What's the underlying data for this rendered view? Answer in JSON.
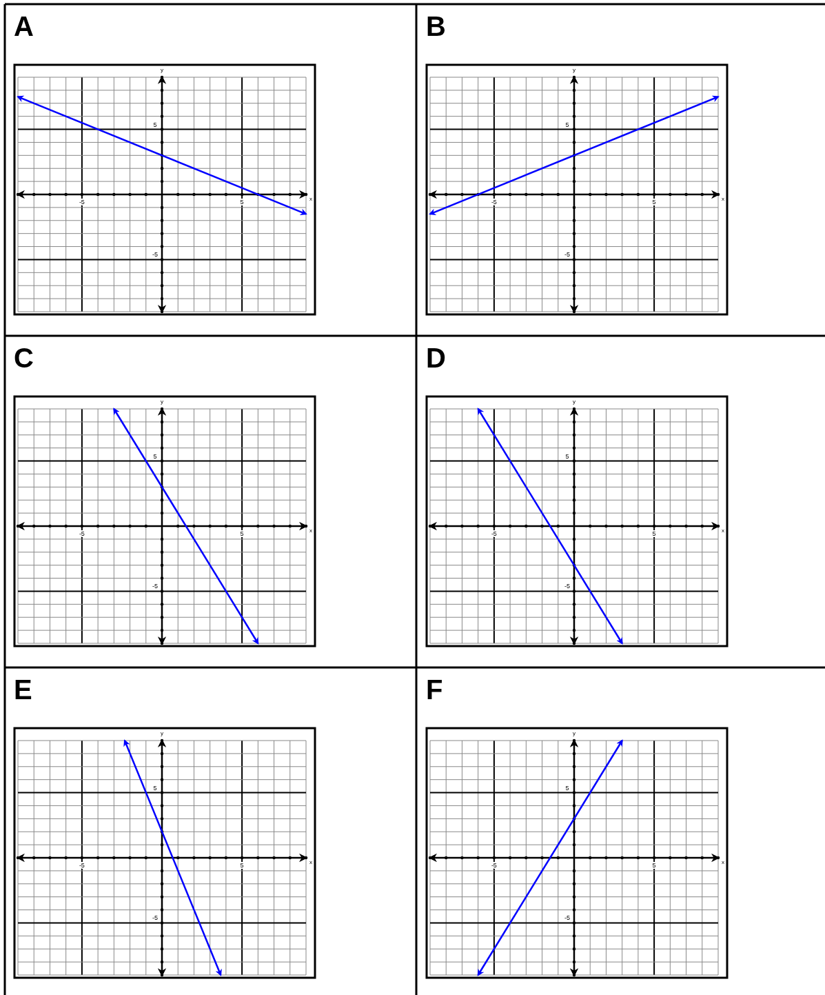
{
  "chart_data": [
    {
      "type": "line",
      "title": "A",
      "xlabel": "x",
      "ylabel": "y",
      "xlim": [
        -9,
        9
      ],
      "ylim": [
        -9,
        9
      ],
      "grid": true,
      "xticks": [
        {
          "value": -9,
          "label": null
        },
        {
          "value": -8,
          "label": null
        },
        {
          "value": -7,
          "label": null
        },
        {
          "value": -6,
          "label": null
        },
        {
          "value": -5,
          "label": "-5"
        },
        {
          "value": -4,
          "label": null
        },
        {
          "value": -3,
          "label": null
        },
        {
          "value": -2,
          "label": null
        },
        {
          "value": -1,
          "label": null
        },
        {
          "value": 1,
          "label": null
        },
        {
          "value": 2,
          "label": null
        },
        {
          "value": 3,
          "label": null
        },
        {
          "value": 4,
          "label": null
        },
        {
          "value": 5,
          "label": "5"
        },
        {
          "value": 6,
          "label": null
        },
        {
          "value": 7,
          "label": null
        },
        {
          "value": 8,
          "label": null
        },
        {
          "value": 9,
          "label": null
        }
      ],
      "yticks": [
        {
          "value": -9,
          "label": null
        },
        {
          "value": -8,
          "label": null
        },
        {
          "value": -7,
          "label": null
        },
        {
          "value": -6,
          "label": null
        },
        {
          "value": -5,
          "label": "-5"
        },
        {
          "value": -4,
          "label": null
        },
        {
          "value": -3,
          "label": null
        },
        {
          "value": -2,
          "label": null
        },
        {
          "value": -1,
          "label": null
        },
        {
          "value": 1,
          "label": null
        },
        {
          "value": 2,
          "label": null
        },
        {
          "value": 3,
          "label": null
        },
        {
          "value": 4,
          "label": null
        },
        {
          "value": 5,
          "label": "5"
        },
        {
          "value": 6,
          "label": null
        },
        {
          "value": 7,
          "label": null
        },
        {
          "value": 8,
          "label": null
        },
        {
          "value": 9,
          "label": null
        }
      ],
      "series": [
        {
          "color": "#0000ff",
          "x": [
            -9,
            9
          ],
          "values": [
            7.5,
            -1.5
          ]
        }
      ]
    },
    {
      "type": "line",
      "title": "B",
      "xlabel": "x",
      "ylabel": "y",
      "xlim": [
        -9,
        9
      ],
      "ylim": [
        -9,
        9
      ],
      "grid": true,
      "xticks": [
        {
          "value": -9,
          "label": null
        },
        {
          "value": -8,
          "label": null
        },
        {
          "value": -7,
          "label": null
        },
        {
          "value": -6,
          "label": null
        },
        {
          "value": -5,
          "label": "-5"
        },
        {
          "value": -4,
          "label": null
        },
        {
          "value": -3,
          "label": null
        },
        {
          "value": -2,
          "label": null
        },
        {
          "value": -1,
          "label": null
        },
        {
          "value": 1,
          "label": null
        },
        {
          "value": 2,
          "label": null
        },
        {
          "value": 3,
          "label": null
        },
        {
          "value": 4,
          "label": null
        },
        {
          "value": 5,
          "label": "5"
        },
        {
          "value": 6,
          "label": null
        },
        {
          "value": 7,
          "label": null
        },
        {
          "value": 8,
          "label": null
        },
        {
          "value": 9,
          "label": null
        }
      ],
      "yticks": [
        {
          "value": -9,
          "label": null
        },
        {
          "value": -8,
          "label": null
        },
        {
          "value": -7,
          "label": null
        },
        {
          "value": -6,
          "label": null
        },
        {
          "value": -5,
          "label": "-5"
        },
        {
          "value": -4,
          "label": null
        },
        {
          "value": -3,
          "label": null
        },
        {
          "value": -2,
          "label": null
        },
        {
          "value": -1,
          "label": null
        },
        {
          "value": 1,
          "label": null
        },
        {
          "value": 2,
          "label": null
        },
        {
          "value": 3,
          "label": null
        },
        {
          "value": 4,
          "label": null
        },
        {
          "value": 5,
          "label": "5"
        },
        {
          "value": 6,
          "label": null
        },
        {
          "value": 7,
          "label": null
        },
        {
          "value": 8,
          "label": null
        },
        {
          "value": 9,
          "label": null
        }
      ],
      "series": [
        {
          "color": "#0000ff",
          "x": [
            -9,
            9
          ],
          "values": [
            -1.5,
            7.5
          ]
        }
      ]
    },
    {
      "type": "line",
      "title": "C",
      "xlabel": "x",
      "ylabel": "y",
      "xlim": [
        -9,
        9
      ],
      "ylim": [
        -9,
        9
      ],
      "grid": true,
      "xticks": [
        {
          "value": -9,
          "label": null
        },
        {
          "value": -8,
          "label": null
        },
        {
          "value": -7,
          "label": null
        },
        {
          "value": -6,
          "label": null
        },
        {
          "value": -5,
          "label": "-5"
        },
        {
          "value": -4,
          "label": null
        },
        {
          "value": -3,
          "label": null
        },
        {
          "value": -2,
          "label": null
        },
        {
          "value": -1,
          "label": null
        },
        {
          "value": 1,
          "label": null
        },
        {
          "value": 2,
          "label": null
        },
        {
          "value": 3,
          "label": null
        },
        {
          "value": 4,
          "label": null
        },
        {
          "value": 5,
          "label": "5"
        },
        {
          "value": 6,
          "label": null
        },
        {
          "value": 7,
          "label": null
        },
        {
          "value": 8,
          "label": null
        },
        {
          "value": 9,
          "label": null
        }
      ],
      "yticks": [
        {
          "value": -9,
          "label": null
        },
        {
          "value": -8,
          "label": null
        },
        {
          "value": -7,
          "label": null
        },
        {
          "value": -6,
          "label": null
        },
        {
          "value": -5,
          "label": "-5"
        },
        {
          "value": -4,
          "label": null
        },
        {
          "value": -3,
          "label": null
        },
        {
          "value": -2,
          "label": null
        },
        {
          "value": -1,
          "label": null
        },
        {
          "value": 1,
          "label": null
        },
        {
          "value": 2,
          "label": null
        },
        {
          "value": 3,
          "label": null
        },
        {
          "value": 4,
          "label": null
        },
        {
          "value": 5,
          "label": "5"
        },
        {
          "value": 6,
          "label": null
        },
        {
          "value": 7,
          "label": null
        },
        {
          "value": 8,
          "label": null
        },
        {
          "value": 9,
          "label": null
        }
      ],
      "series": [
        {
          "color": "#0000ff",
          "x": [
            -3,
            6
          ],
          "values": [
            9,
            -9
          ]
        }
      ]
    },
    {
      "type": "line",
      "title": "D",
      "xlabel": "x",
      "ylabel": "y",
      "xlim": [
        -9,
        9
      ],
      "ylim": [
        -9,
        9
      ],
      "grid": true,
      "xticks": [
        {
          "value": -9,
          "label": null
        },
        {
          "value": -8,
          "label": null
        },
        {
          "value": -7,
          "label": null
        },
        {
          "value": -6,
          "label": null
        },
        {
          "value": -5,
          "label": "-5"
        },
        {
          "value": -4,
          "label": null
        },
        {
          "value": -3,
          "label": null
        },
        {
          "value": -2,
          "label": null
        },
        {
          "value": -1,
          "label": null
        },
        {
          "value": 1,
          "label": null
        },
        {
          "value": 2,
          "label": null
        },
        {
          "value": 3,
          "label": null
        },
        {
          "value": 4,
          "label": null
        },
        {
          "value": 5,
          "label": "5"
        },
        {
          "value": 6,
          "label": null
        },
        {
          "value": 7,
          "label": null
        },
        {
          "value": 8,
          "label": null
        },
        {
          "value": 9,
          "label": null
        }
      ],
      "yticks": [
        {
          "value": -9,
          "label": null
        },
        {
          "value": -8,
          "label": null
        },
        {
          "value": -7,
          "label": null
        },
        {
          "value": -6,
          "label": null
        },
        {
          "value": -5,
          "label": "-5"
        },
        {
          "value": -4,
          "label": null
        },
        {
          "value": -3,
          "label": null
        },
        {
          "value": -2,
          "label": null
        },
        {
          "value": -1,
          "label": null
        },
        {
          "value": 1,
          "label": null
        },
        {
          "value": 2,
          "label": null
        },
        {
          "value": 3,
          "label": null
        },
        {
          "value": 4,
          "label": null
        },
        {
          "value": 5,
          "label": "5"
        },
        {
          "value": 6,
          "label": null
        },
        {
          "value": 7,
          "label": null
        },
        {
          "value": 8,
          "label": null
        },
        {
          "value": 9,
          "label": null
        }
      ],
      "series": [
        {
          "color": "#0000ff",
          "x": [
            -6,
            3
          ],
          "values": [
            9,
            -9
          ]
        }
      ]
    },
    {
      "type": "line",
      "title": "E",
      "xlabel": "x",
      "ylabel": "y",
      "xlim": [
        -9,
        9
      ],
      "ylim": [
        -9,
        9
      ],
      "grid": true,
      "xticks": [
        {
          "value": -9,
          "label": null
        },
        {
          "value": -8,
          "label": null
        },
        {
          "value": -7,
          "label": null
        },
        {
          "value": -6,
          "label": null
        },
        {
          "value": -5,
          "label": "-5"
        },
        {
          "value": -4,
          "label": null
        },
        {
          "value": -3,
          "label": null
        },
        {
          "value": -2,
          "label": null
        },
        {
          "value": -1,
          "label": null
        },
        {
          "value": 1,
          "label": null
        },
        {
          "value": 2,
          "label": null
        },
        {
          "value": 3,
          "label": null
        },
        {
          "value": 4,
          "label": null
        },
        {
          "value": 5,
          "label": "5"
        },
        {
          "value": 6,
          "label": null
        },
        {
          "value": 7,
          "label": null
        },
        {
          "value": 8,
          "label": null
        },
        {
          "value": 9,
          "label": null
        }
      ],
      "yticks": [
        {
          "value": -9,
          "label": null
        },
        {
          "value": -8,
          "label": null
        },
        {
          "value": -7,
          "label": null
        },
        {
          "value": -6,
          "label": null
        },
        {
          "value": -5,
          "label": "-5"
        },
        {
          "value": -4,
          "label": null
        },
        {
          "value": -3,
          "label": null
        },
        {
          "value": -2,
          "label": null
        },
        {
          "value": -1,
          "label": null
        },
        {
          "value": 1,
          "label": null
        },
        {
          "value": 2,
          "label": null
        },
        {
          "value": 3,
          "label": null
        },
        {
          "value": 4,
          "label": null
        },
        {
          "value": 5,
          "label": "5"
        },
        {
          "value": 6,
          "label": null
        },
        {
          "value": 7,
          "label": null
        },
        {
          "value": 8,
          "label": null
        },
        {
          "value": 9,
          "label": null
        }
      ],
      "series": [
        {
          "color": "#0000ff",
          "x": [
            -2.33,
            3.67
          ],
          "values": [
            9,
            -9
          ]
        }
      ]
    },
    {
      "type": "line",
      "title": "F",
      "xlabel": "x",
      "ylabel": "y",
      "xlim": [
        -9,
        9
      ],
      "ylim": [
        -9,
        9
      ],
      "grid": true,
      "xticks": [
        {
          "value": -9,
          "label": null
        },
        {
          "value": -8,
          "label": null
        },
        {
          "value": -7,
          "label": null
        },
        {
          "value": -6,
          "label": null
        },
        {
          "value": -5,
          "label": "-5"
        },
        {
          "value": -4,
          "label": null
        },
        {
          "value": -3,
          "label": null
        },
        {
          "value": -2,
          "label": null
        },
        {
          "value": -1,
          "label": null
        },
        {
          "value": 1,
          "label": null
        },
        {
          "value": 2,
          "label": null
        },
        {
          "value": 3,
          "label": null
        },
        {
          "value": 4,
          "label": null
        },
        {
          "value": 5,
          "label": "5"
        },
        {
          "value": 6,
          "label": null
        },
        {
          "value": 7,
          "label": null
        },
        {
          "value": 8,
          "label": null
        },
        {
          "value": 9,
          "label": null
        }
      ],
      "yticks": [
        {
          "value": -9,
          "label": null
        },
        {
          "value": -8,
          "label": null
        },
        {
          "value": -7,
          "label": null
        },
        {
          "value": -6,
          "label": null
        },
        {
          "value": -5,
          "label": "-5"
        },
        {
          "value": -4,
          "label": null
        },
        {
          "value": -3,
          "label": null
        },
        {
          "value": -2,
          "label": null
        },
        {
          "value": -1,
          "label": null
        },
        {
          "value": 1,
          "label": null
        },
        {
          "value": 2,
          "label": null
        },
        {
          "value": 3,
          "label": null
        },
        {
          "value": 4,
          "label": null
        },
        {
          "value": 5,
          "label": "5"
        },
        {
          "value": 6,
          "label": null
        },
        {
          "value": 7,
          "label": null
        },
        {
          "value": 8,
          "label": null
        },
        {
          "value": 9,
          "label": null
        }
      ],
      "series": [
        {
          "color": "#0000ff",
          "x": [
            -6,
            3
          ],
          "values": [
            -9,
            9
          ]
        }
      ]
    }
  ]
}
